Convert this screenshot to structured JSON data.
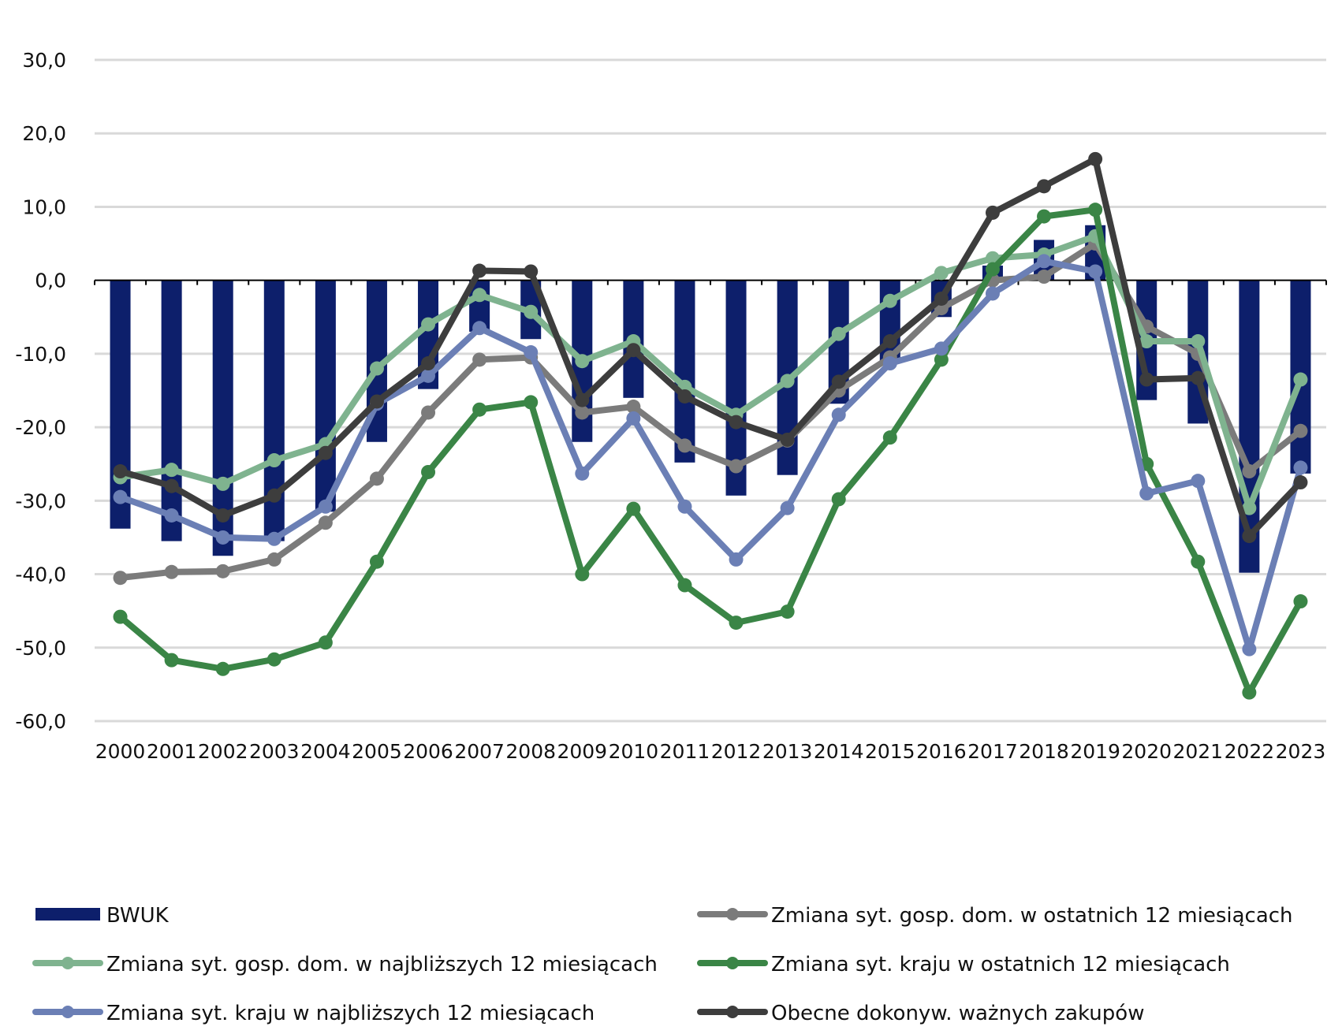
{
  "chart_data": {
    "type": "bar+line",
    "title": "",
    "xlabel": "",
    "ylabel": "",
    "ylim": [
      -60,
      30
    ],
    "ytick_step": 10,
    "ytick_labels": [
      "30,0",
      "20,0",
      "10,0",
      "0,0",
      "-10,0",
      "-20,0",
      "-30,0",
      "-40,0",
      "-50,0",
      "-60,0"
    ],
    "grid": true,
    "legend_position": "bottom",
    "categories": [
      "2000",
      "2001",
      "2002",
      "2003",
      "2004",
      "2005",
      "2006",
      "2007",
      "2008",
      "2009",
      "2010",
      "2011",
      "2012",
      "2013",
      "2014",
      "2015",
      "2016",
      "2017",
      "2018",
      "2019",
      "2020",
      "2021",
      "2022",
      "2023"
    ],
    "bar_series": {
      "name": "BWUK",
      "color": "#0d1f6b",
      "values": [
        -33.8,
        -35.5,
        -37.5,
        -35.5,
        -31.5,
        -22.0,
        -14.8,
        -7.0,
        -8.0,
        -22.0,
        -16.0,
        -24.8,
        -29.3,
        -26.5,
        -16.8,
        -11.0,
        -5.0,
        2.0,
        5.5,
        7.5,
        -16.3,
        -19.5,
        -39.8,
        -26.3
      ]
    },
    "series": [
      {
        "name": "Zmiana syt. gosp. dom. w ostatnich 12 miesiącach",
        "color": "#7b7b7b",
        "values": [
          -40.5,
          -39.7,
          -39.6,
          -38.0,
          -33.0,
          -27.0,
          -18.0,
          -10.8,
          -10.5,
          -18.0,
          -17.2,
          -22.5,
          -25.3,
          -21.8,
          -15.0,
          -10.5,
          -3.8,
          0.0,
          0.5,
          5.0,
          -6.3,
          -10.0,
          -26.0,
          -20.5
        ]
      },
      {
        "name": "Zmiana syt. gosp. dom. w najbliższych 12 miesiącach",
        "color": "#7fb38f",
        "values": [
          -26.8,
          -25.8,
          -27.7,
          -24.5,
          -22.3,
          -12.0,
          -6.0,
          -2.0,
          -4.3,
          -11.0,
          -8.3,
          -14.5,
          -18.3,
          -13.7,
          -7.3,
          -2.8,
          1.0,
          3.0,
          3.5,
          6.0,
          -8.3,
          -8.3,
          -31.0,
          -13.5
        ]
      },
      {
        "name": "Zmiana syt. kraju w ostatnich 12 miesiącach",
        "color": "#3a8546",
        "values": [
          -45.8,
          -51.7,
          -52.9,
          -51.6,
          -49.3,
          -38.3,
          -26.1,
          -17.6,
          -16.6,
          -40.0,
          -31.1,
          -41.5,
          -46.6,
          -45.1,
          -29.8,
          -21.4,
          -10.8,
          1.5,
          8.7,
          9.6,
          -25.0,
          -38.3,
          -56.1,
          -43.7
        ]
      },
      {
        "name": "Zmiana syt. kraju w najbliższych 12 miesiącach",
        "color": "#6b7fb5",
        "values": [
          -29.5,
          -32.0,
          -35.0,
          -35.2,
          -30.8,
          -16.8,
          -13.0,
          -6.5,
          -9.8,
          -26.3,
          -18.8,
          -30.8,
          -38.0,
          -31.0,
          -18.3,
          -11.3,
          -9.3,
          -1.8,
          2.6,
          1.2,
          -29.0,
          -27.3,
          -50.2,
          -25.5
        ]
      },
      {
        "name": "Obecne dokonyw. ważnych zakupów",
        "color": "#3d3d3d",
        "values": [
          -26.0,
          -28.0,
          -32.0,
          -29.3,
          -23.5,
          -16.5,
          -11.3,
          1.3,
          1.2,
          -16.3,
          -9.5,
          -15.8,
          -19.3,
          -21.7,
          -13.8,
          -8.3,
          -2.5,
          9.2,
          12.8,
          16.5,
          -13.5,
          -13.3,
          -34.8,
          -27.5
        ]
      }
    ]
  }
}
